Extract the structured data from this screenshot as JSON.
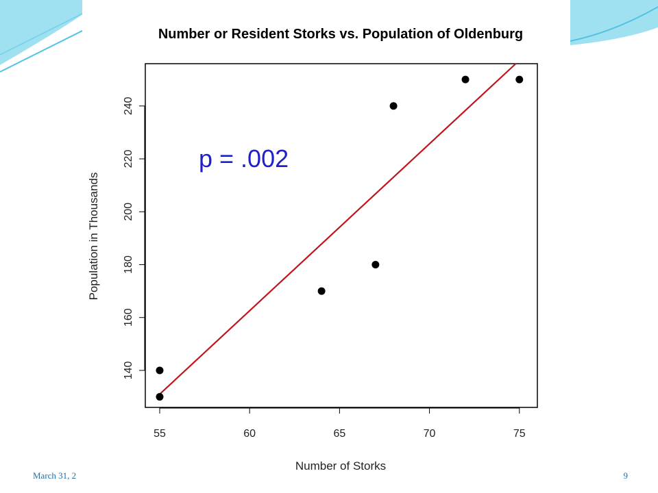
{
  "slide": {
    "footer_date": "March 31, 2",
    "page_number": "9",
    "accent_color": "#4fc3e0"
  },
  "chart_data": {
    "type": "scatter",
    "title": "Number or Resident Storks vs. Population of Oldenburg",
    "xlabel": "Number of Storks",
    "ylabel": "Population in Thousands",
    "xlim": [
      54.2,
      76
    ],
    "ylim": [
      126,
      256
    ],
    "xticks": [
      55,
      60,
      65,
      70,
      75
    ],
    "yticks": [
      140,
      160,
      180,
      200,
      220,
      240
    ],
    "points": [
      {
        "x": 55,
        "y": 130
      },
      {
        "x": 55,
        "y": 140
      },
      {
        "x": 64,
        "y": 170
      },
      {
        "x": 67,
        "y": 180
      },
      {
        "x": 68,
        "y": 240
      },
      {
        "x": 72,
        "y": 250
      },
      {
        "x": 75,
        "y": 250
      }
    ],
    "fit_line": {
      "x": [
        55,
        74.8
      ],
      "y": [
        131,
        256
      ],
      "color": "#c0141a"
    },
    "annotation": "p = .002",
    "annotation_color": "#1f1fcc",
    "point_color": "#000000",
    "grid": false
  }
}
